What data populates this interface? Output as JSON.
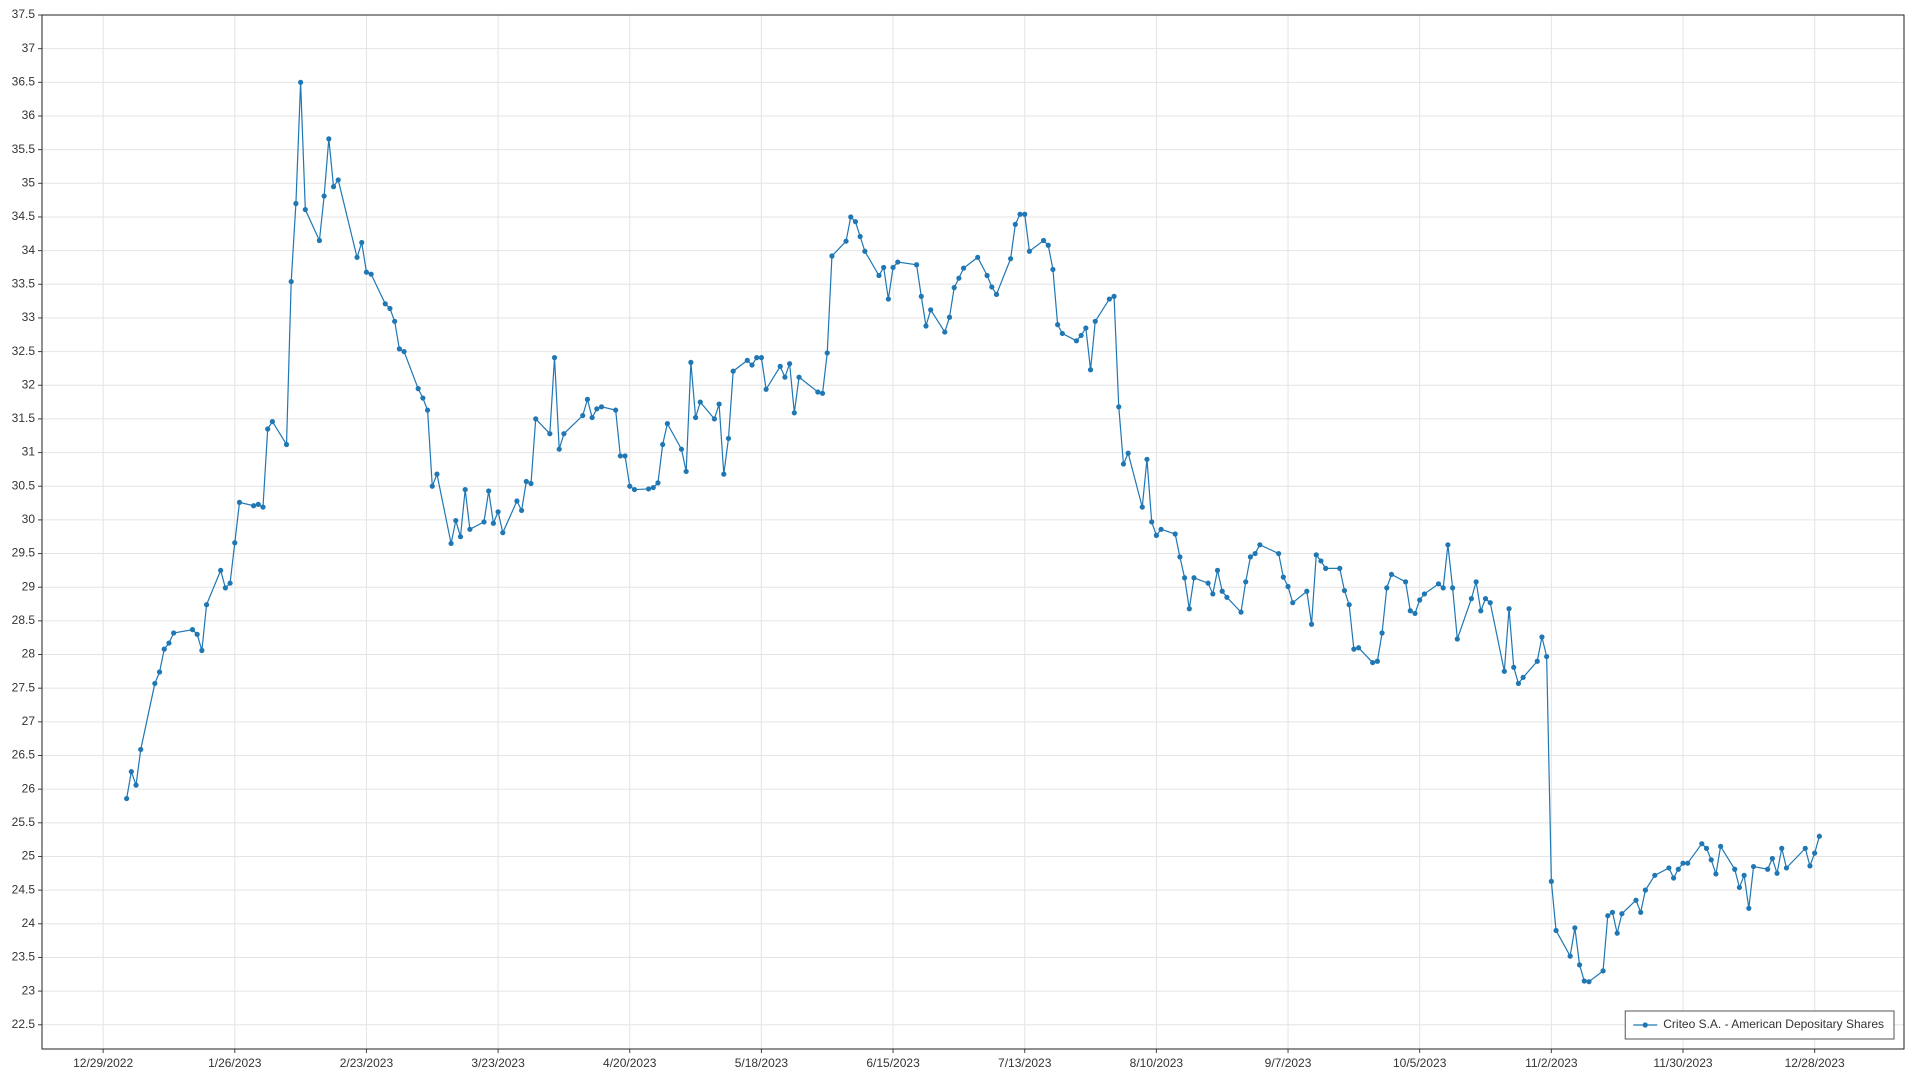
{
  "chart_data": {
    "type": "line",
    "x": [
      "1/3/2023",
      "1/4/2023",
      "1/5/2023",
      "1/6/2023",
      "1/9/2023",
      "1/10/2023",
      "1/11/2023",
      "1/12/2023",
      "1/13/2023",
      "1/17/2023",
      "1/18/2023",
      "1/19/2023",
      "1/20/2023",
      "1/23/2023",
      "1/24/2023",
      "1/25/2023",
      "1/26/2023",
      "1/27/2023",
      "1/30/2023",
      "1/31/2023",
      "2/1/2023",
      "2/2/2023",
      "2/3/2023",
      "2/6/2023",
      "2/7/2023",
      "2/8/2023",
      "2/9/2023",
      "2/10/2023",
      "2/13/2023",
      "2/14/2023",
      "2/15/2023",
      "2/16/2023",
      "2/17/2023",
      "2/21/2023",
      "2/22/2023",
      "2/23/2023",
      "2/24/2023",
      "2/27/2023",
      "2/28/2023",
      "3/1/2023",
      "3/2/2023",
      "3/3/2023",
      "3/6/2023",
      "3/7/2023",
      "3/8/2023",
      "3/9/2023",
      "3/10/2023",
      "3/13/2023",
      "3/14/2023",
      "3/15/2023",
      "3/16/2023",
      "3/17/2023",
      "3/20/2023",
      "3/21/2023",
      "3/22/2023",
      "3/23/2023",
      "3/24/2023",
      "3/27/2023",
      "3/28/2023",
      "3/29/2023",
      "3/30/2023",
      "3/31/2023",
      "4/3/2023",
      "4/4/2023",
      "4/5/2023",
      "4/6/2023",
      "4/10/2023",
      "4/11/2023",
      "4/12/2023",
      "4/13/2023",
      "4/14/2023",
      "4/17/2023",
      "4/18/2023",
      "4/19/2023",
      "4/20/2023",
      "4/21/2023",
      "4/24/2023",
      "4/25/2023",
      "4/26/2023",
      "4/27/2023",
      "4/28/2023",
      "5/1/2023",
      "5/2/2023",
      "5/3/2023",
      "5/4/2023",
      "5/5/2023",
      "5/8/2023",
      "5/9/2023",
      "5/10/2023",
      "5/11/2023",
      "5/12/2023",
      "5/15/2023",
      "5/16/2023",
      "5/17/2023",
      "5/18/2023",
      "5/19/2023",
      "5/22/2023",
      "5/23/2023",
      "5/24/2023",
      "5/25/2023",
      "5/26/2023",
      "5/30/2023",
      "5/31/2023",
      "6/1/2023",
      "6/2/2023",
      "6/5/2023",
      "6/6/2023",
      "6/7/2023",
      "6/8/2023",
      "6/9/2023",
      "6/12/2023",
      "6/13/2023",
      "6/14/2023",
      "6/15/2023",
      "6/16/2023",
      "6/20/2023",
      "6/21/2023",
      "6/22/2023",
      "6/23/2023",
      "6/26/2023",
      "6/27/2023",
      "6/28/2023",
      "6/29/2023",
      "6/30/2023",
      "7/3/2023",
      "7/5/2023",
      "7/6/2023",
      "7/7/2023",
      "7/10/2023",
      "7/11/2023",
      "7/12/2023",
      "7/13/2023",
      "7/14/2023",
      "7/17/2023",
      "7/18/2023",
      "7/19/2023",
      "7/20/2023",
      "7/21/2023",
      "7/24/2023",
      "7/25/2023",
      "7/26/2023",
      "7/27/2023",
      "7/28/2023",
      "7/31/2023",
      "8/1/2023",
      "8/2/2023",
      "8/3/2023",
      "8/4/2023",
      "8/7/2023",
      "8/8/2023",
      "8/9/2023",
      "8/10/2023",
      "8/11/2023",
      "8/14/2023",
      "8/15/2023",
      "8/16/2023",
      "8/17/2023",
      "8/18/2023",
      "8/21/2023",
      "8/22/2023",
      "8/23/2023",
      "8/24/2023",
      "8/25/2023",
      "8/28/2023",
      "8/29/2023",
      "8/30/2023",
      "8/31/2023",
      "9/1/2023",
      "9/5/2023",
      "9/6/2023",
      "9/7/2023",
      "9/8/2023",
      "9/11/2023",
      "9/12/2023",
      "9/13/2023",
      "9/14/2023",
      "9/15/2023",
      "9/18/2023",
      "9/19/2023",
      "9/20/2023",
      "9/21/2023",
      "9/22/2023",
      "9/25/2023",
      "9/26/2023",
      "9/27/2023",
      "9/28/2023",
      "9/29/2023",
      "10/2/2023",
      "10/3/2023",
      "10/4/2023",
      "10/5/2023",
      "10/6/2023",
      "10/9/2023",
      "10/10/2023",
      "10/11/2023",
      "10/12/2023",
      "10/13/2023",
      "10/16/2023",
      "10/17/2023",
      "10/18/2023",
      "10/19/2023",
      "10/20/2023",
      "10/23/2023",
      "10/24/2023",
      "10/25/2023",
      "10/26/2023",
      "10/27/2023",
      "10/30/2023",
      "10/31/2023",
      "11/1/2023",
      "11/2/2023",
      "11/3/2023",
      "11/6/2023",
      "11/7/2023",
      "11/8/2023",
      "11/9/2023",
      "11/10/2023",
      "11/13/2023",
      "11/14/2023",
      "11/15/2023",
      "11/16/2023",
      "11/17/2023",
      "11/20/2023",
      "11/21/2023",
      "11/22/2023",
      "11/24/2023",
      "11/27/2023",
      "11/28/2023",
      "11/29/2023",
      "11/30/2023",
      "12/1/2023",
      "12/4/2023",
      "12/5/2023",
      "12/6/2023",
      "12/7/2023",
      "12/8/2023",
      "12/11/2023",
      "12/12/2023",
      "12/13/2023",
      "12/14/2023",
      "12/15/2023",
      "12/18/2023",
      "12/19/2023",
      "12/20/2023",
      "12/21/2023",
      "12/22/2023",
      "12/26/2023",
      "12/27/2023",
      "12/28/2023",
      "12/29/2023"
    ],
    "series": [
      {
        "name": "Criteo S.A. - American Depositary Shares",
        "color": "#1f77b4",
        "values": [
          25.86,
          26.26,
          26.06,
          26.59,
          27.57,
          27.74,
          28.08,
          28.17,
          28.32,
          28.37,
          28.3,
          28.06,
          28.74,
          29.25,
          28.99,
          29.06,
          29.66,
          30.26,
          30.21,
          30.23,
          30.19,
          31.35,
          31.46,
          31.12,
          33.54,
          34.7,
          36.5,
          34.61,
          34.15,
          34.81,
          35.66,
          34.95,
          35.05,
          33.9,
          34.12,
          33.68,
          33.65,
          33.21,
          33.14,
          32.95,
          32.54,
          32.5,
          31.95,
          31.81,
          31.63,
          30.5,
          30.68,
          29.65,
          29.99,
          29.75,
          30.45,
          29.86,
          29.97,
          30.43,
          29.95,
          30.12,
          29.81,
          30.28,
          30.14,
          30.57,
          30.54,
          31.5,
          31.28,
          32.41,
          31.05,
          31.28,
          31.55,
          31.79,
          31.52,
          31.65,
          31.68,
          31.63,
          30.95,
          30.95,
          30.5,
          30.45,
          30.46,
          30.48,
          30.55,
          31.12,
          31.43,
          31.05,
          30.72,
          32.34,
          31.52,
          31.75,
          31.5,
          31.72,
          30.68,
          31.21,
          32.21,
          32.37,
          32.3,
          32.41,
          32.41,
          31.94,
          32.28,
          32.12,
          32.32,
          31.59,
          32.12,
          31.9,
          31.88,
          32.48,
          33.92,
          34.14,
          34.5,
          34.43,
          34.21,
          33.99,
          33.63,
          33.75,
          33.28,
          33.75,
          33.83,
          33.79,
          33.32,
          32.88,
          33.12,
          32.79,
          33.01,
          33.45,
          33.59,
          33.74,
          33.9,
          33.63,
          33.46,
          33.35,
          33.88,
          34.39,
          34.54,
          34.54,
          33.99,
          34.15,
          34.08,
          33.72,
          32.9,
          32.77,
          32.66,
          32.74,
          32.85,
          32.23,
          32.95,
          33.28,
          33.32,
          31.68,
          30.83,
          30.99,
          30.19,
          30.9,
          29.97,
          29.77,
          29.86,
          29.79,
          29.45,
          29.14,
          28.68,
          29.14,
          29.06,
          28.9,
          29.25,
          28.94,
          28.85,
          28.63,
          29.08,
          29.45,
          29.5,
          29.63,
          29.5,
          29.15,
          29.01,
          28.77,
          28.94,
          28.45,
          29.48,
          29.39,
          29.28,
          29.28,
          28.95,
          28.74,
          28.08,
          28.1,
          27.88,
          27.9,
          28.32,
          28.99,
          29.19,
          29.08,
          28.65,
          28.61,
          28.81,
          28.9,
          29.05,
          28.99,
          29.63,
          28.99,
          28.23,
          28.83,
          29.08,
          28.65,
          28.83,
          28.77,
          27.75,
          28.68,
          27.81,
          27.57,
          27.66,
          27.9,
          28.26,
          27.97,
          24.63,
          23.9,
          23.52,
          23.94,
          23.39,
          23.15,
          23.14,
          23.3,
          24.12,
          24.17,
          23.86,
          24.15,
          24.35,
          24.17,
          24.5,
          24.72,
          24.83,
          24.68,
          24.81,
          24.9,
          24.9,
          25.19,
          25.12,
          24.95,
          24.74,
          25.15,
          24.81,
          24.54,
          24.72,
          24.23,
          24.85,
          24.81,
          24.97,
          24.75,
          25.12,
          24.83,
          25.12,
          24.86,
          25.05,
          25.3
        ]
      }
    ],
    "xlim": [
      "12/16/2022",
      "1/16/2024"
    ],
    "xticks": [
      "12/29/2022",
      "1/26/2023",
      "2/23/2023",
      "3/23/2023",
      "4/20/2023",
      "5/18/2023",
      "6/15/2023",
      "7/13/2023",
      "8/10/2023",
      "9/7/2023",
      "10/5/2023",
      "11/2/2023",
      "11/30/2023",
      "12/28/2023"
    ],
    "ylim": [
      22.14,
      37.5
    ],
    "yticks": [
      22.5,
      23,
      23.5,
      24,
      24.5,
      25,
      25.5,
      26,
      26.5,
      27,
      27.5,
      28,
      28.5,
      29,
      29.5,
      30,
      30.5,
      31,
      31.5,
      32,
      32.5,
      33,
      33.5,
      34,
      34.5,
      35,
      35.5,
      36,
      36.5,
      37,
      37.5
    ],
    "grid": true,
    "legend": "lower right"
  }
}
